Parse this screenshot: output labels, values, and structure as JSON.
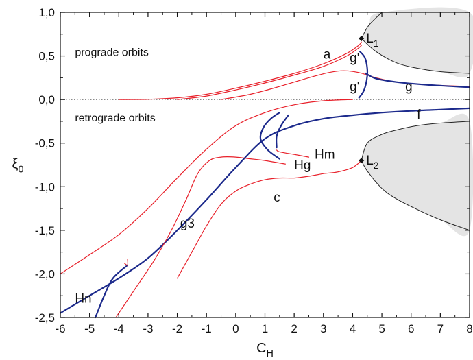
{
  "chart_data": {
    "type": "line",
    "xlabel": "C_H",
    "ylabel": "ξ_0",
    "xlim": [
      -6,
      8
    ],
    "ylim": [
      -2.5,
      1.0
    ],
    "x_ticks": [
      -6,
      -5,
      -4,
      -3,
      -2,
      -1,
      0,
      1,
      2,
      3,
      4,
      5,
      6,
      7,
      8
    ],
    "y_ticks": [
      1.0,
      0.5,
      0.0,
      -0.5,
      -1.0,
      -1.5,
      -2.0,
      -2.5
    ],
    "x_tick_labels": [
      "-6",
      "-5",
      "-4",
      "-3",
      "-2",
      "-1",
      "0",
      "1",
      "2",
      "3",
      "4",
      "5",
      "6",
      "7",
      "8"
    ],
    "y_tick_labels": [
      "1,0",
      "0,5",
      "0,0",
      "-0,5",
      "-1,0",
      "-1,5",
      "-2,0",
      "-2,5"
    ],
    "grid": false,
    "colors": {
      "red": "#e8202a",
      "blue": "#1c2a8c",
      "black": "#222222",
      "shade": "#e4e4e4"
    },
    "boundaries": [
      {
        "id": "upper",
        "points": [
          [
            4.3,
            0.7
          ],
          [
            4.8,
            0.55
          ],
          [
            5.5,
            0.42
          ],
          [
            6.2,
            0.36
          ],
          [
            7.0,
            0.32
          ],
          [
            8.0,
            0.3
          ]
        ]
      },
      {
        "id": "lower",
        "points": [
          [
            4.3,
            -0.7
          ],
          [
            4.5,
            -0.82
          ],
          [
            5.0,
            -1.02
          ],
          [
            5.5,
            -1.14
          ],
          [
            6.2,
            -1.26
          ],
          [
            7.0,
            -1.38
          ],
          [
            8.0,
            -1.5
          ]
        ]
      },
      {
        "id": "lower-top",
        "points": [
          [
            4.3,
            -0.7
          ],
          [
            4.5,
            -0.5
          ],
          [
            5.0,
            -0.4
          ],
          [
            5.5,
            -0.35
          ],
          [
            6.2,
            -0.3
          ],
          [
            7.0,
            -0.27
          ],
          [
            8.0,
            -0.25
          ]
        ]
      },
      {
        "id": "upper-top",
        "points": [
          [
            4.3,
            0.7
          ],
          [
            4.55,
            0.85
          ],
          [
            5.0,
            1.0
          ]
        ]
      }
    ],
    "shaded_regions": [
      {
        "id": "upper",
        "points": [
          [
            4.3,
            0.7
          ],
          [
            4.55,
            0.85
          ],
          [
            5.0,
            1.0
          ],
          [
            8.0,
            1.0
          ],
          [
            8.0,
            0.3
          ],
          [
            7.0,
            0.32
          ],
          [
            6.2,
            0.36
          ],
          [
            5.5,
            0.42
          ],
          [
            4.8,
            0.55
          ]
        ]
      },
      {
        "id": "lower",
        "points": [
          [
            4.3,
            -0.7
          ],
          [
            4.5,
            -0.5
          ],
          [
            5.0,
            -0.4
          ],
          [
            5.5,
            -0.35
          ],
          [
            6.2,
            -0.3
          ],
          [
            7.0,
            -0.27
          ],
          [
            8.0,
            -0.25
          ],
          [
            8.0,
            -1.5
          ],
          [
            7.0,
            -1.38
          ],
          [
            6.2,
            -1.26
          ],
          [
            5.5,
            -1.14
          ],
          [
            5.0,
            -1.02
          ],
          [
            4.5,
            -0.82
          ]
        ]
      }
    ],
    "series": [
      {
        "id": "a1",
        "color": "red",
        "width": 1.2,
        "points": [
          [
            -4.0,
            0.0
          ],
          [
            -3.0,
            0.003
          ],
          [
            -2.0,
            0.02
          ],
          [
            -1.0,
            0.06
          ],
          [
            0.0,
            0.13
          ],
          [
            1.0,
            0.21
          ],
          [
            2.0,
            0.3
          ],
          [
            3.0,
            0.41
          ],
          [
            3.8,
            0.53
          ],
          [
            4.2,
            0.62
          ],
          [
            4.3,
            0.66
          ]
        ]
      },
      {
        "id": "a2",
        "color": "red",
        "width": 1.2,
        "points": [
          [
            -2.0,
            0.0
          ],
          [
            -1.0,
            0.04
          ],
          [
            0.0,
            0.11
          ],
          [
            1.0,
            0.19
          ],
          [
            2.0,
            0.28
          ],
          [
            3.0,
            0.38
          ],
          [
            3.8,
            0.5
          ],
          [
            4.2,
            0.59
          ],
          [
            4.3,
            0.62
          ]
        ]
      },
      {
        "id": "a3",
        "color": "red",
        "width": 1.2,
        "points": [
          [
            -0.5,
            0.0
          ],
          [
            0.5,
            0.06
          ],
          [
            1.5,
            0.15
          ],
          [
            2.5,
            0.25
          ],
          [
            3.2,
            0.31
          ],
          [
            3.7,
            0.33
          ],
          [
            4.2,
            0.31
          ],
          [
            4.8,
            0.25
          ],
          [
            5.5,
            0.2
          ],
          [
            6.5,
            0.17
          ],
          [
            8.0,
            0.15
          ]
        ]
      },
      {
        "id": "g",
        "color": "blue",
        "width": 2.2,
        "points": [
          [
            4.45,
            0.3
          ],
          [
            4.8,
            0.24
          ],
          [
            5.5,
            0.2
          ],
          [
            6.5,
            0.17
          ],
          [
            8.0,
            0.14
          ]
        ]
      },
      {
        "id": "gprime",
        "color": "blue",
        "width": 2.2,
        "points": [
          [
            4.25,
            0.55
          ],
          [
            4.42,
            0.48
          ],
          [
            4.5,
            0.35
          ],
          [
            4.48,
            0.22
          ],
          [
            4.38,
            0.1
          ],
          [
            4.22,
            0.02
          ]
        ]
      },
      {
        "id": "f",
        "color": "blue",
        "width": 2.2,
        "points": [
          [
            -6.0,
            -2.45
          ],
          [
            -5.0,
            -2.25
          ],
          [
            -4.0,
            -2.05
          ],
          [
            -3.0,
            -1.82
          ],
          [
            -2.0,
            -1.5
          ],
          [
            -1.0,
            -1.15
          ],
          [
            0.0,
            -0.78
          ],
          [
            1.0,
            -0.45
          ],
          [
            2.0,
            -0.3
          ],
          [
            3.0,
            -0.22
          ],
          [
            4.0,
            -0.18
          ],
          [
            5.0,
            -0.15
          ],
          [
            6.0,
            -0.13
          ],
          [
            7.0,
            -0.115
          ],
          [
            8.0,
            -0.1
          ]
        ]
      },
      {
        "id": "red-outer",
        "color": "red",
        "width": 1.2,
        "points": [
          [
            -6.0,
            -2.0
          ],
          [
            -5.0,
            -1.78
          ],
          [
            -4.0,
            -1.55
          ],
          [
            -3.0,
            -1.25
          ],
          [
            -2.0,
            -0.9
          ],
          [
            -1.0,
            -0.57
          ],
          [
            0.0,
            -0.3
          ],
          [
            1.0,
            -0.15
          ],
          [
            2.0,
            -0.06
          ],
          [
            3.0,
            -0.015
          ],
          [
            4.0,
            0.0
          ]
        ]
      },
      {
        "id": "g3",
        "color": "red",
        "width": 1.2,
        "points": [
          [
            -4.1,
            -2.5
          ],
          [
            -3.5,
            -2.2
          ],
          [
            -2.8,
            -1.85
          ],
          [
            -2.2,
            -1.5
          ],
          [
            -1.7,
            -1.15
          ],
          [
            -1.3,
            -0.85
          ],
          [
            -0.9,
            -0.7
          ],
          [
            -0.5,
            -0.66
          ],
          [
            0.0,
            -0.66
          ],
          [
            0.5,
            -0.68
          ],
          [
            1.0,
            -0.7
          ],
          [
            1.7,
            -0.74
          ]
        ]
      },
      {
        "id": "c",
        "color": "red",
        "width": 1.2,
        "points": [
          [
            -2.0,
            -2.05
          ],
          [
            -1.5,
            -1.75
          ],
          [
            -1.0,
            -1.45
          ],
          [
            -0.5,
            -1.2
          ],
          [
            0.0,
            -1.05
          ],
          [
            0.5,
            -0.97
          ],
          [
            1.0,
            -0.92
          ],
          [
            1.5,
            -0.9
          ],
          [
            2.0,
            -0.9
          ],
          [
            2.5,
            -0.88
          ],
          [
            3.0,
            -0.85
          ],
          [
            3.5,
            -0.83
          ],
          [
            4.0,
            -0.78
          ],
          [
            4.3,
            -0.7
          ]
        ]
      },
      {
        "id": "hg-blue",
        "color": "blue",
        "width": 2.2,
        "points": [
          [
            1.5,
            -0.68
          ],
          [
            1.1,
            -0.58
          ],
          [
            0.85,
            -0.45
          ],
          [
            0.95,
            -0.32
          ],
          [
            1.2,
            -0.22
          ],
          [
            1.5,
            -0.15
          ]
        ]
      },
      {
        "id": "hm-blue",
        "color": "blue",
        "width": 2.2,
        "points": [
          [
            1.4,
            -0.55
          ],
          [
            1.4,
            -0.42
          ],
          [
            1.55,
            -0.3
          ],
          [
            1.8,
            -0.18
          ]
        ]
      },
      {
        "id": "hm-red",
        "color": "red",
        "width": 1.2,
        "points": [
          [
            1.4,
            -0.58
          ],
          [
            1.5,
            -0.6
          ],
          [
            2.0,
            -0.63
          ],
          [
            2.5,
            -0.66
          ]
        ]
      },
      {
        "id": "hn-blue",
        "color": "blue",
        "width": 2.2,
        "points": [
          [
            -4.8,
            -2.5
          ],
          [
            -4.5,
            -2.25
          ],
          [
            -4.2,
            -2.05
          ],
          [
            -3.7,
            -1.9
          ]
        ]
      },
      {
        "id": "hn-red",
        "color": "red",
        "width": 1.2,
        "points": [
          [
            -3.8,
            -1.88
          ],
          [
            -3.7,
            -1.9
          ],
          [
            -3.7,
            -1.83
          ]
        ]
      }
    ],
    "reference_lines": [
      {
        "y": 0.0,
        "style": "dotted"
      }
    ],
    "points": [
      {
        "label": "L_1",
        "x": 4.3,
        "y": 0.7
      },
      {
        "label": "L_2",
        "x": 4.3,
        "y": -0.7
      }
    ],
    "annotations": [
      {
        "text": "prograde orbits",
        "x": -5.5,
        "y": 0.5
      },
      {
        "text": "retrograde orbits",
        "x": -5.5,
        "y": -0.25
      },
      {
        "text": "a",
        "x": 3.0,
        "y": 0.47
      },
      {
        "text": "g'",
        "x": 3.9,
        "y": 0.43
      },
      {
        "text": "g'",
        "x": 3.9,
        "y": 0.1
      },
      {
        "text": "g",
        "x": 5.8,
        "y": 0.1
      },
      {
        "text": "f",
        "x": 6.2,
        "y": -0.22
      },
      {
        "text": "Hm",
        "x": 2.7,
        "y": -0.68
      },
      {
        "text": "Hg",
        "x": 2.0,
        "y": -0.8
      },
      {
        "text": "c",
        "x": 1.3,
        "y": -1.17
      },
      {
        "text": "g3",
        "x": -1.9,
        "y": -1.47
      },
      {
        "text": "Hn",
        "x": -5.5,
        "y": -2.33
      }
    ]
  }
}
